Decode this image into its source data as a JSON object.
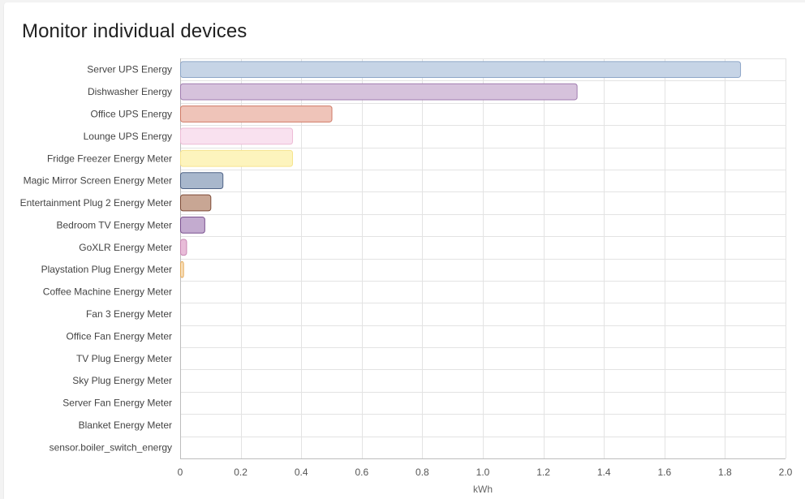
{
  "card": {
    "title": "Monitor individual devices"
  },
  "chart_data": {
    "type": "bar",
    "orientation": "horizontal",
    "categories": [
      "Server UPS Energy",
      "Dishwasher Energy",
      "Office UPS Energy",
      "Lounge UPS Energy",
      "Fridge Freezer Energy Meter",
      "Magic Mirror Screen Energy Meter",
      "Entertainment Plug 2 Energy Meter",
      "Bedroom TV Energy Meter",
      "GoXLR Energy Meter",
      "Playstation Plug Energy Meter",
      "Coffee Machine Energy Meter",
      "Fan 3 Energy Meter",
      "Office Fan Energy Meter",
      "TV Plug Energy Meter",
      "Sky Plug Energy Meter",
      "Server Fan Energy Meter",
      "Blanket Energy Meter",
      "sensor.boiler_switch_energy"
    ],
    "values": [
      1.85,
      1.31,
      0.5,
      0.37,
      0.37,
      0.14,
      0.1,
      0.08,
      0.02,
      0.01,
      0,
      0,
      0,
      0,
      0,
      0,
      0,
      0
    ],
    "fill_colors": [
      "#c6d4e6",
      "#d6c2dc",
      "#efc4b9",
      "#f9e1ef",
      "#fdf4bd",
      "#a8b7cc",
      "#c8a694",
      "#c3abcf",
      "#e8bcd8",
      "#f6ddb9"
    ],
    "stroke_colors": [
      "#8ea6c8",
      "#a07caf",
      "#cf7a66",
      "#edbcd6",
      "#f6e48f",
      "#4f6386",
      "#7d4a36",
      "#7a508f",
      "#c987b4",
      "#e6ad5e"
    ],
    "xlabel": "kWh",
    "ylabel": "",
    "xlim": [
      0,
      2.0
    ],
    "xticks": [
      "0",
      "0.2",
      "0.4",
      "0.6",
      "0.8",
      "1.0",
      "1.2",
      "1.4",
      "1.6",
      "1.8",
      "2.0"
    ],
    "grid": true
  }
}
